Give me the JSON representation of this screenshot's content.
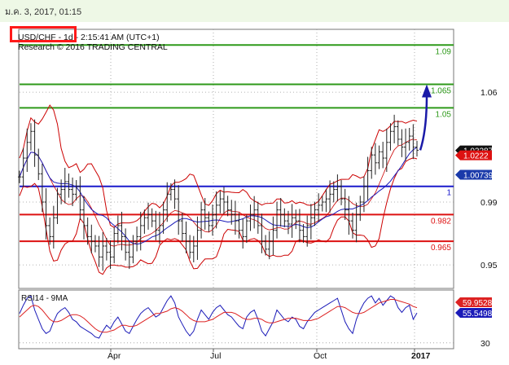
{
  "header": {
    "timestamp": "ม.ค. 3, 2017, 01:15",
    "title": "USD/CHF - 1d - 2:15:41 AM (UTC+1)",
    "subtitle": "Research © 2016 TRADING CENTRAL"
  },
  "colors": {
    "background": "#ffffff",
    "top_bar": "#eef8e6",
    "highlight_box": "#ff1a1a",
    "target_lines": "#2e9a1a",
    "pivot_line": "#1a1acc",
    "support_lines": "#dd1111",
    "price_bars": "#222222",
    "bollinger": "#cc0000",
    "moving_average": "#1a1ab8",
    "arrow": "#1a1aa8",
    "rsi_line": "#1a1ab8",
    "rsi_signal": "#dd2222"
  },
  "chart_data": [
    {
      "type": "candlestick",
      "title": "USD/CHF - 1d",
      "ylim": [
        0.935,
        1.1
      ],
      "y_ticks": [
        "1.06",
        "0.99",
        "0.95"
      ],
      "x_ticks": [
        "Apr",
        "Jul",
        "Oct",
        "2017"
      ],
      "levels": [
        {
          "label": "1.09",
          "value": 1.09,
          "kind": "target"
        },
        {
          "label": "1.065",
          "value": 1.065,
          "kind": "target"
        },
        {
          "label": "1.05",
          "value": 1.05,
          "kind": "target"
        },
        {
          "label": "1",
          "value": 1.0,
          "kind": "pivot"
        },
        {
          "label": "0.982",
          "value": 0.982,
          "kind": "support"
        },
        {
          "label": "0.965",
          "value": 0.965,
          "kind": "support"
        }
      ],
      "price_tags": [
        {
          "label": "1.02287",
          "value": 1.02287,
          "color": "#111111"
        },
        {
          "label": "1.0222",
          "value": 1.0198,
          "color": "#dd1111"
        },
        {
          "label": "1.00739",
          "value": 1.00739,
          "color": "#1a3aaa"
        }
      ],
      "close_series": [
        1.006,
        1.018,
        1.028,
        1.035,
        1.02,
        1.008,
        0.99,
        0.975,
        0.968,
        0.98,
        0.995,
        0.998,
        1.003,
        0.998,
        0.995,
        1.0,
        0.985,
        0.975,
        0.968,
        0.965,
        0.962,
        0.955,
        0.962,
        0.958,
        0.955,
        0.97,
        0.975,
        0.968,
        0.958,
        0.955,
        0.965,
        0.968,
        0.975,
        0.98,
        0.982,
        0.978,
        0.972,
        0.975,
        0.985,
        0.995,
        0.998,
        0.992,
        0.978,
        0.97,
        0.965,
        0.958,
        0.962,
        0.972,
        0.985,
        0.98,
        0.975,
        0.982,
        0.988,
        0.992,
        0.99,
        0.985,
        0.982,
        0.978,
        0.972,
        0.968,
        0.978,
        0.982,
        0.985,
        0.975,
        0.965,
        0.96,
        0.965,
        0.972,
        0.985,
        0.982,
        0.978,
        0.976,
        0.98,
        0.978,
        0.972,
        0.968,
        0.975,
        0.98,
        0.985,
        0.988,
        0.99,
        0.992,
        0.995,
        0.998,
        1.0,
        0.992,
        0.985,
        0.978,
        0.972,
        0.982,
        0.99,
        1.0,
        1.01,
        1.02,
        1.015,
        1.022,
        1.018,
        1.028,
        1.035,
        1.038,
        1.03,
        1.025,
        1.028,
        1.032,
        1.025,
        1.023
      ]
    },
    {
      "type": "line",
      "title": "RSI14 - 9MA",
      "ylim": [
        25,
        75
      ],
      "y_ticks": [
        "30"
      ],
      "x_ticks": [
        "Apr",
        "Jul",
        "Oct",
        "2017"
      ],
      "series": [
        {
          "name": "RSI14",
          "last_value": "55.5498",
          "values": [
            55,
            62,
            68,
            70,
            58,
            50,
            42,
            38,
            40,
            48,
            55,
            58,
            60,
            56,
            50,
            48,
            44,
            42,
            40,
            38,
            35,
            34,
            40,
            45,
            42,
            48,
            52,
            46,
            40,
            38,
            44,
            50,
            55,
            58,
            60,
            56,
            52,
            54,
            60,
            66,
            70,
            64,
            52,
            46,
            40,
            36,
            40,
            50,
            58,
            54,
            50,
            56,
            60,
            62,
            58,
            54,
            52,
            48,
            44,
            42,
            52,
            56,
            58,
            50,
            40,
            36,
            42,
            48,
            58,
            54,
            50,
            48,
            52,
            50,
            44,
            42,
            48,
            52,
            56,
            58,
            60,
            62,
            64,
            66,
            68,
            58,
            48,
            42,
            38,
            50,
            58,
            64,
            68,
            70,
            64,
            68,
            62,
            66,
            70,
            68,
            60,
            56,
            60,
            62,
            50,
            55.5
          ]
        },
        {
          "name": "9MA",
          "last_value": "59.9528",
          "values": [
            52,
            55,
            58,
            61,
            62,
            61,
            58,
            54,
            50,
            48,
            48,
            49,
            51,
            53,
            54,
            54,
            53,
            51,
            48,
            45,
            42,
            40,
            39,
            39,
            40,
            41,
            43,
            45,
            45,
            44,
            44,
            45,
            47,
            49,
            51,
            53,
            55,
            55,
            56,
            57,
            59,
            60,
            59,
            57,
            54,
            51,
            49,
            48,
            48,
            48,
            49,
            50,
            52,
            54,
            56,
            56,
            56,
            55,
            53,
            51,
            50,
            50,
            51,
            51,
            50,
            48,
            47,
            47,
            48,
            49,
            50,
            51,
            51,
            51,
            50,
            49,
            49,
            49,
            50,
            51,
            53,
            55,
            57,
            59,
            61,
            61,
            60,
            58,
            56,
            55,
            55,
            56,
            58,
            60,
            62,
            64,
            65,
            66,
            67,
            67,
            66,
            65,
            64,
            63,
            61,
            60
          ]
        }
      ]
    }
  ]
}
